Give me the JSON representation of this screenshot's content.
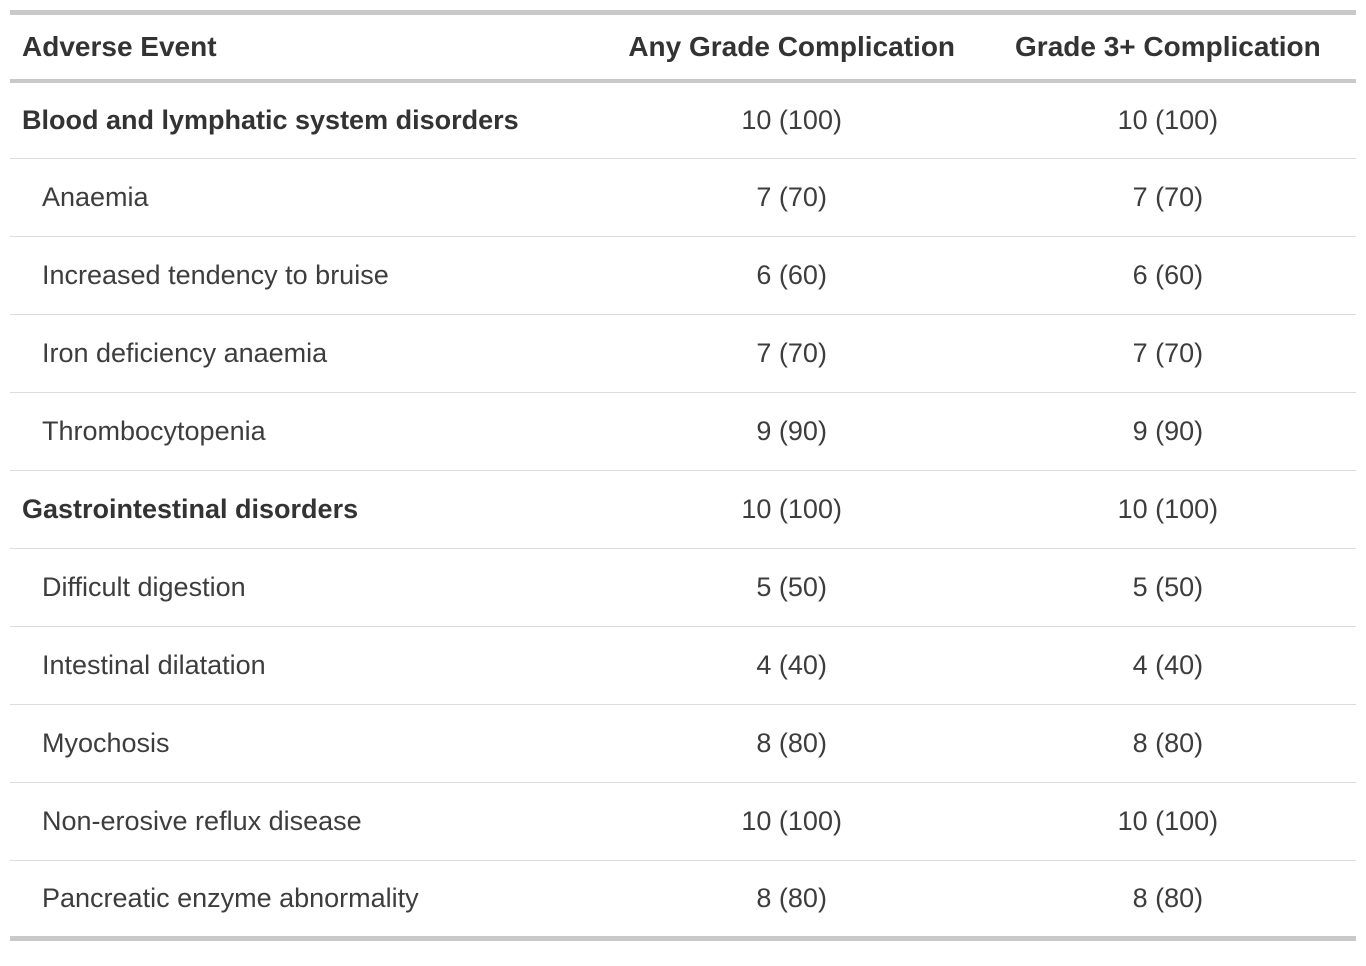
{
  "colors": {
    "background": "#ffffff",
    "header_text": "#333333",
    "body_text": "#3d3d3d",
    "border_strong": "#c9c9c9",
    "border_light": "#dcdcdc"
  },
  "chart_data": {
    "type": "table",
    "title": "",
    "columns": [
      {
        "label": "Adverse Event"
      },
      {
        "label": "Any Grade Complication"
      },
      {
        "label": "Grade 3+ Complication"
      }
    ],
    "rows": [
      {
        "label": "Blood and lymphatic system disorders",
        "is_category": true,
        "any_grade": "10 (100)",
        "grade3plus": "10 (100)"
      },
      {
        "label": "Anaemia",
        "is_category": false,
        "any_grade": "7 (70)",
        "grade3plus": "7 (70)"
      },
      {
        "label": "Increased tendency to bruise",
        "is_category": false,
        "any_grade": "6 (60)",
        "grade3plus": "6 (60)"
      },
      {
        "label": "Iron deficiency anaemia",
        "is_category": false,
        "any_grade": "7 (70)",
        "grade3plus": "7 (70)"
      },
      {
        "label": "Thrombocytopenia",
        "is_category": false,
        "any_grade": "9 (90)",
        "grade3plus": "9 (90)"
      },
      {
        "label": "Gastrointestinal disorders",
        "is_category": true,
        "any_grade": "10 (100)",
        "grade3plus": "10 (100)"
      },
      {
        "label": "Difficult digestion",
        "is_category": false,
        "any_grade": "5 (50)",
        "grade3plus": "5 (50)"
      },
      {
        "label": "Intestinal dilatation",
        "is_category": false,
        "any_grade": "4 (40)",
        "grade3plus": "4 (40)"
      },
      {
        "label": "Myochosis",
        "is_category": false,
        "any_grade": "8 (80)",
        "grade3plus": "8 (80)"
      },
      {
        "label": "Non-erosive reflux disease",
        "is_category": false,
        "any_grade": "10 (100)",
        "grade3plus": "10 (100)"
      },
      {
        "label": "Pancreatic enzyme abnormality",
        "is_category": false,
        "any_grade": "8 (80)",
        "grade3plus": "8 (80)"
      }
    ]
  }
}
